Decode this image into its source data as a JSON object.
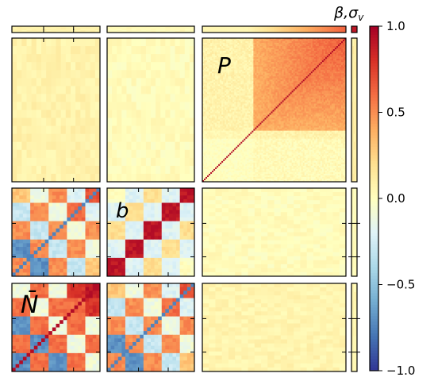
{
  "chart_data": {
    "type": "heatmap",
    "description_labels": {
      "big_panel": "P",
      "middle_panel": "b",
      "bottom_panel": "N̄"
    },
    "strip_label": "β,σ",
    "strip_label_sub": "v",
    "colorbar": {
      "min": -1.0,
      "max": 1.0,
      "ticks": [
        "1.0",
        "0.5",
        "0.0",
        "−0.5",
        "−1.0"
      ],
      "tick_values": [
        1.0,
        0.5,
        0.0,
        -0.5,
        -1.0
      ],
      "colors": [
        "#313695",
        "#4575b4",
        "#74add1",
        "#abd9e9",
        "#e0f3f8",
        "#ffffbf",
        "#fee090",
        "#fdae61",
        "#f46d43",
        "#d73027",
        "#a50026"
      ]
    },
    "block_structure": {
      "N_blocks": [
        [
          -0.7,
          0.6,
          -0.7,
          0.6,
          -0.1
        ],
        [
          0.6,
          -0.7,
          0.6,
          -0.1,
          0.6
        ],
        [
          -0.7,
          0.6,
          -0.1,
          0.6,
          -0.1
        ],
        [
          0.6,
          -0.1,
          0.6,
          0.6,
          0.8
        ],
        [
          -0.1,
          0.6,
          -0.1,
          0.8,
          0.9
        ]
      ],
      "b_blocks": [
        [
          0.9,
          -0.2,
          0.2,
          -0.2,
          0.0
        ],
        [
          -0.2,
          0.9,
          -0.2,
          0.2,
          -0.2
        ],
        [
          0.2,
          -0.2,
          0.9,
          -0.2,
          0.2
        ],
        [
          -0.2,
          0.2,
          -0.2,
          0.9,
          -0.2
        ],
        [
          0.0,
          -0.2,
          0.2,
          -0.2,
          0.9
        ]
      ],
      "Nb_cross": [
        [
          0.5,
          -0.7,
          0.5,
          -0.3,
          0.3
        ],
        [
          -0.7,
          0.5,
          -0.3,
          0.5,
          -0.1
        ],
        [
          0.5,
          -0.3,
          0.5,
          -0.1,
          0.5
        ],
        [
          -0.3,
          0.5,
          -0.1,
          0.6,
          -0.2
        ],
        [
          0.3,
          -0.1,
          0.5,
          -0.2,
          0.7
        ]
      ]
    }
  }
}
